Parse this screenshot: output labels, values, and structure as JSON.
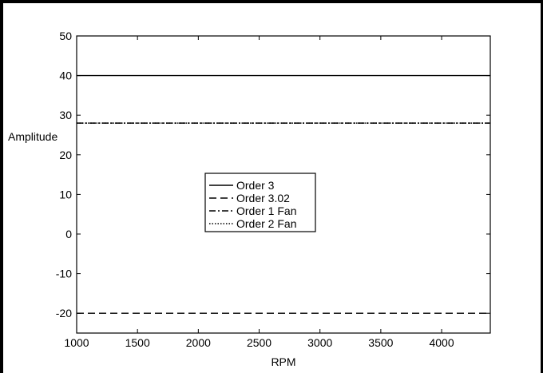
{
  "chart_data": {
    "type": "line",
    "title": "",
    "xlabel": "RPM",
    "ylabel": "Amplitude",
    "xlim": [
      1000,
      4400
    ],
    "ylim": [
      -25,
      50
    ],
    "xticks": [
      1000,
      1500,
      2000,
      2500,
      3000,
      3500,
      4000
    ],
    "yticks": [
      -20,
      -10,
      0,
      10,
      20,
      30,
      40,
      50
    ],
    "xtick_labels": [
      "1000",
      "1500",
      "2000",
      "2500",
      "3000",
      "3500",
      "4000"
    ],
    "ytick_labels": [
      "-20",
      "-10",
      "0",
      "10",
      "20",
      "30",
      "40",
      "50"
    ],
    "grid": false,
    "legend_position": "center-left",
    "series": [
      {
        "name": "Order 3",
        "style": "solid",
        "x": [
          1000,
          4400
        ],
        "y": [
          40,
          40
        ]
      },
      {
        "name": "Order 3.02",
        "style": "dashed",
        "x": [
          1000,
          4400
        ],
        "y": [
          -20,
          -20
        ]
      },
      {
        "name": "Order 1 Fan",
        "style": "dashdot",
        "x": [
          1000,
          4400
        ],
        "y": [
          28,
          28
        ]
      },
      {
        "name": "Order 2 Fan",
        "style": "dotted",
        "x": [
          1000,
          4400
        ],
        "y": [
          28,
          28
        ]
      }
    ]
  }
}
